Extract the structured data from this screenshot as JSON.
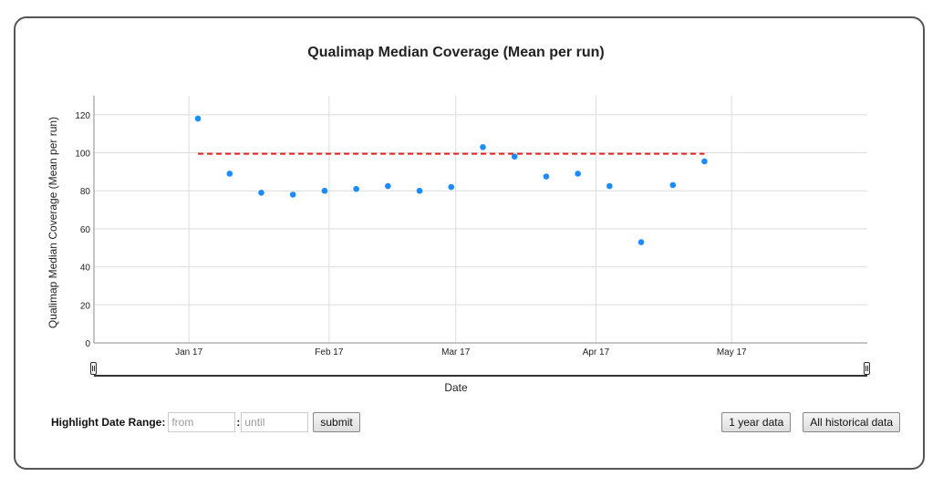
{
  "chart_data": {
    "type": "scatter",
    "title": "Qualimap Median Coverage (Mean per run)",
    "ylabel": "Qualimap Median Coverage (Mean per run)",
    "xlabel": "Date",
    "x_ticks": [
      "Jan 17",
      "Feb 17",
      "Mar 17",
      "Apr 17",
      "May 17"
    ],
    "y_ticks": [
      0,
      20,
      40,
      60,
      80,
      100,
      120
    ],
    "xlim": [
      "2016-12-11",
      "2017-05-31"
    ],
    "ylim": [
      0,
      130
    ],
    "grid": true,
    "point_color": "#1a8cff",
    "mean_line_color": "#e82020",
    "series": [
      {
        "points": [
          {
            "x": "2017-01-03",
            "y": 118
          },
          {
            "x": "2017-01-10",
            "y": 89
          },
          {
            "x": "2017-01-17",
            "y": 79
          },
          {
            "x": "2017-01-24",
            "y": 78
          },
          {
            "x": "2017-01-31",
            "y": 80
          },
          {
            "x": "2017-02-07",
            "y": 81
          },
          {
            "x": "2017-02-14",
            "y": 82.5
          },
          {
            "x": "2017-02-21",
            "y": 80
          },
          {
            "x": "2017-02-28",
            "y": 82
          },
          {
            "x": "2017-03-07",
            "y": 103
          },
          {
            "x": "2017-03-14",
            "y": 98
          },
          {
            "x": "2017-03-21",
            "y": 87.5
          },
          {
            "x": "2017-03-28",
            "y": 89
          },
          {
            "x": "2017-04-04",
            "y": 82.5
          },
          {
            "x": "2017-04-11",
            "y": 53
          },
          {
            "x": "2017-04-18",
            "y": 83
          },
          {
            "x": "2017-04-25",
            "y": 95.5
          }
        ]
      }
    ],
    "mean_line": {
      "y": 99.5,
      "x_start": "2017-01-03",
      "x_end": "2017-04-25"
    }
  },
  "controls": {
    "highlight_label": "Highlight Date Range:",
    "separator": ":",
    "from_placeholder": "from",
    "until_placeholder": "until",
    "submit_label": "submit",
    "one_year_label": "1 year data",
    "all_history_label": "All historical data"
  }
}
